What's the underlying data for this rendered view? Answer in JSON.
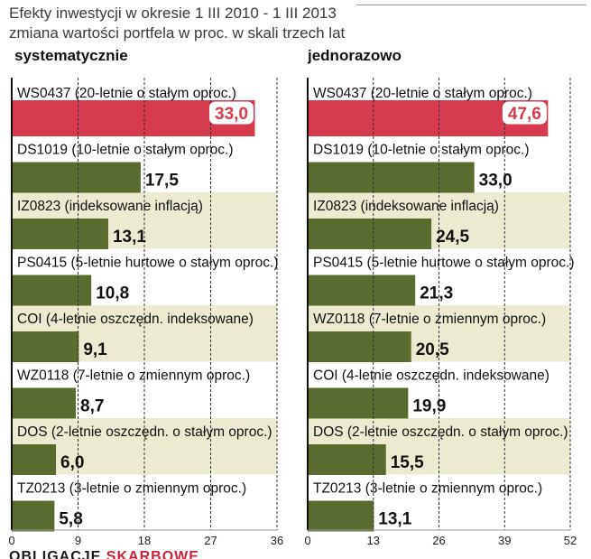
{
  "title": {
    "line1": "Efekty inwestycji w okresie 1 III 2010 - 1 III 2013",
    "line2": "zmiana wartości portfela w proc. w skali trzech lat"
  },
  "footer": {
    "part1": "OBLIGACJE",
    "part2": "SKARBOWE"
  },
  "colors": {
    "highlight_bar": "#d63a4e",
    "bar": "#5a6b2f",
    "band_light": "#ecebd2",
    "band_white": "#ffffff",
    "axis": "#111111",
    "grid": "#333333"
  },
  "chart_data": [
    {
      "type": "bar",
      "orientation": "horizontal",
      "title": "systematycznie",
      "xlim": [
        0,
        36
      ],
      "xticks": [
        "0",
        "9",
        "18",
        "27",
        "36"
      ],
      "categories": [
        "WS0437 (20-letnie o stałym oproc.)",
        "DS1019 (10-letnie o stałym oproc.)",
        "IZ0823 (indeksowane inflacją)",
        "PS0415 (5-letnie hurtowe o stałym oproc.)",
        "COI (4-letnie oszczędn. indeksowane)",
        "WZ0118 (7-letnie o zmiennym oproc.)",
        "DOS (2-letnie oszczędn. o stałym oproc.)",
        "TZ0213 (3-letnie o zmiennym oproc.)"
      ],
      "values": [
        33.0,
        17.5,
        13.1,
        10.8,
        9.1,
        8.7,
        6.0,
        5.8
      ],
      "labels": [
        "33,0",
        "17,5",
        "13,1",
        "10,8",
        "9,1",
        "8,7",
        "6,0",
        "5,8"
      ]
    },
    {
      "type": "bar",
      "orientation": "horizontal",
      "title": "jednorazowo",
      "xlim": [
        0,
        52
      ],
      "xticks": [
        "0",
        "13",
        "26",
        "39",
        "52"
      ],
      "categories": [
        "WS0437 (20-letnie o stałym oproc.)",
        "DS1019 (10-letnie o stałym oproc.)",
        "IZ0823 (indeksowane inflacją)",
        "PS0415 (5-letnie hurtowe o stałym oproc.)",
        "WZ0118 (7-letnie o zmiennym oproc.)",
        "COI (4-letnie oszczędn. indeksowane)",
        "DOS (2-letnie oszczędn. o stałym oproc.)",
        "TZ0213 (3-letnie o zmiennym oproc.)"
      ],
      "values": [
        47.6,
        33.0,
        24.5,
        21.3,
        20.5,
        19.9,
        15.5,
        13.1
      ],
      "labels": [
        "47,6",
        "33,0",
        "24,5",
        "21,3",
        "20,5",
        "19,9",
        "15,5",
        "13,1"
      ]
    }
  ]
}
